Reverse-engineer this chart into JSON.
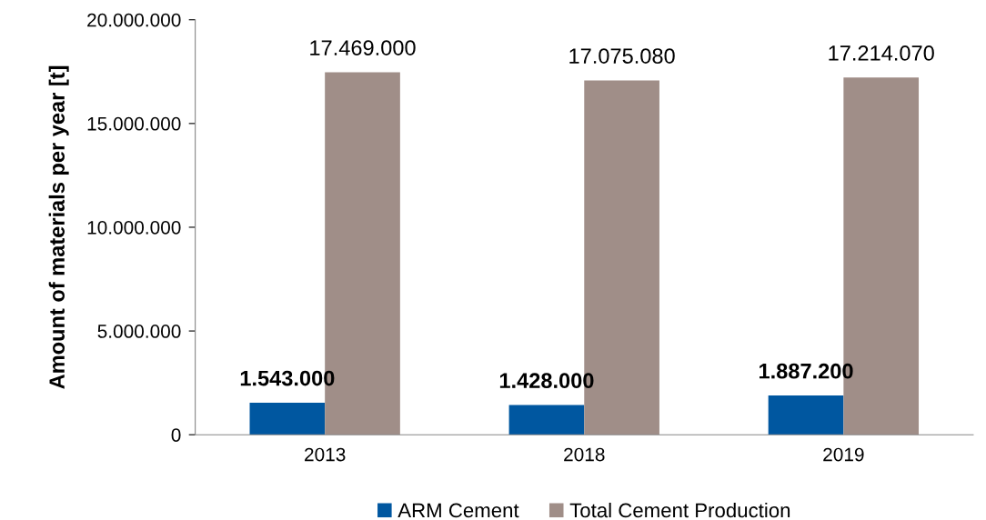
{
  "chart_data": {
    "type": "bar",
    "ylabel": "Amount of materials per year [t]",
    "categories": [
      "2013",
      "2018",
      "2019"
    ],
    "series": [
      {
        "name": "ARM Cement",
        "color": "#0057a0",
        "values": [
          1543000,
          1428000,
          1887200
        ],
        "value_labels": [
          "1.543.000",
          "1.428.000",
          "1.887.200"
        ]
      },
      {
        "name": "Total Cement Production",
        "color": "#a08e88",
        "values": [
          17469000,
          17075080,
          17214070
        ],
        "value_labels": [
          "17.469.000",
          "17.075.080",
          "17.214.070"
        ]
      }
    ],
    "ylim": [
      0,
      20000000
    ],
    "yticks": [
      {
        "value": 0,
        "label": "0"
      },
      {
        "value": 5000000,
        "label": "5.000.000"
      },
      {
        "value": 10000000,
        "label": "10.000.000"
      },
      {
        "value": 15000000,
        "label": "15.000.000"
      },
      {
        "value": 20000000,
        "label": "20.000.000"
      }
    ],
    "grid": false,
    "legend": "bottom"
  }
}
